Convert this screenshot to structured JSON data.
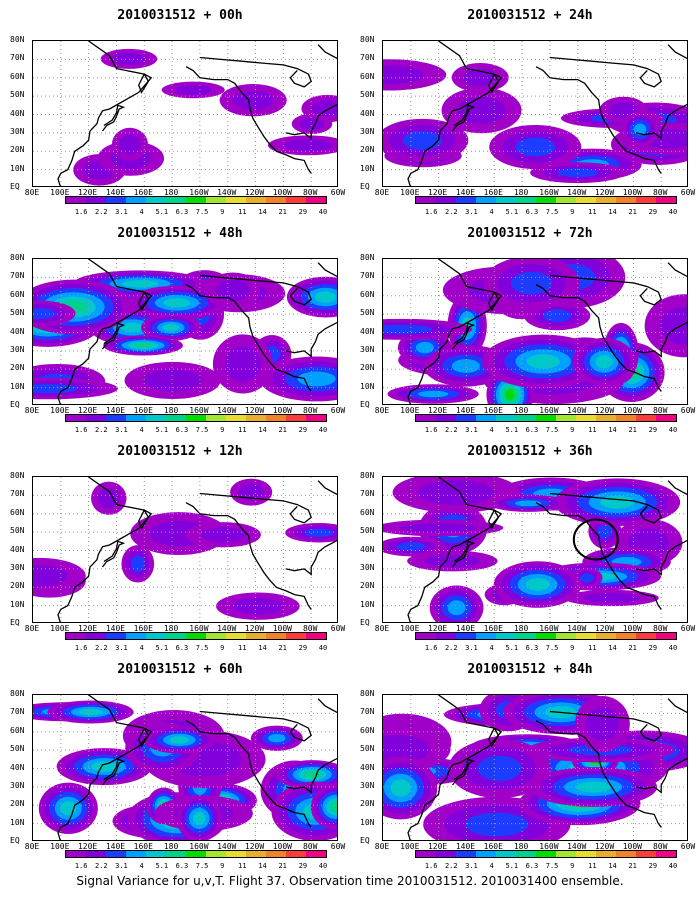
{
  "panels": [
    {
      "title": "2010031512 + 00h",
      "intensity": 0.15,
      "circle": false
    },
    {
      "title": "2010031512 + 12h",
      "intensity": 0.3,
      "circle": false
    },
    {
      "title": "2010031512 + 24h",
      "intensity": 0.45,
      "circle": false
    },
    {
      "title": "2010031512 + 36h",
      "intensity": 0.6,
      "circle": true
    },
    {
      "title": "2010031512 + 48h",
      "intensity": 0.75,
      "circle": false
    },
    {
      "title": "2010031512 + 60h",
      "intensity": 0.8,
      "circle": false
    },
    {
      "title": "2010031512 + 72h",
      "intensity": 0.85,
      "circle": false
    },
    {
      "title": "2010031512 + 84h",
      "intensity": 0.9,
      "circle": false
    }
  ],
  "lat_labels": [
    "80N",
    "70N",
    "60N",
    "50N",
    "40N",
    "30N",
    "20N",
    "10N",
    "EQ"
  ],
  "lon_labels": [
    "80E",
    "100E",
    "120E",
    "140E",
    "160E",
    "180",
    "160W",
    "140W",
    "120W",
    "100W",
    "80W",
    "60W"
  ],
  "colorbar": {
    "levels": [
      "1.6",
      "2.2",
      "3.1",
      "4",
      "5.1",
      "6.3",
      "7.5",
      "9",
      "11",
      "14",
      "21",
      "29",
      "40"
    ],
    "colors": [
      "#a000c8",
      "#8200dc",
      "#1e3cff",
      "#00a0ff",
      "#00c8c8",
      "#00d28c",
      "#00dc00",
      "#a0e632",
      "#e6dc32",
      "#e6af2d",
      "#f08228",
      "#fa3c3c",
      "#f00082"
    ]
  },
  "caption": "Signal Variance for u,v,T. Flight 37. Observation time 2010031512. 2010031400 ensemble."
}
